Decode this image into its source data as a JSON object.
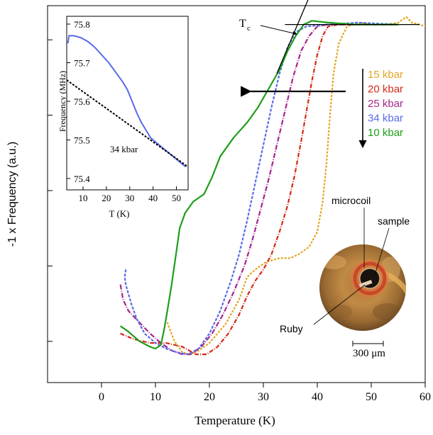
{
  "chart_data": [
    {
      "type": "line",
      "title": "",
      "xlabel": "Temperature (K)",
      "ylabel": "-1 x Frequency (a.u.)",
      "xlim": [
        -10,
        60
      ],
      "ylim": [
        0,
        10
      ],
      "x_ticks": [
        "0",
        "10",
        "20",
        "30",
        "40",
        "50",
        "60"
      ],
      "grid": false,
      "legend": "right",
      "series": [
        {
          "name": "15 kbar",
          "color": "#e2a61e",
          "dash": "3,2",
          "points": [
            [
              12.2,
              1.6
            ],
            [
              13.5,
              1.1
            ],
            [
              15,
              0.8
            ],
            [
              16.5,
              0.75
            ],
            [
              18,
              0.85
            ],
            [
              20,
              1.05
            ],
            [
              23,
              1.55
            ],
            [
              25.5,
              2.2
            ],
            [
              27,
              2.8
            ],
            [
              28.5,
              3.0
            ],
            [
              30.5,
              3.2
            ],
            [
              33,
              3.3
            ],
            [
              35,
              3.3
            ],
            [
              36.5,
              3.4
            ],
            [
              38.5,
              3.6
            ],
            [
              40,
              4.0
            ],
            [
              41,
              4.8
            ],
            [
              41.7,
              5.8
            ],
            [
              42.3,
              7.0
            ],
            [
              43,
              8.2
            ],
            [
              44,
              9.0
            ],
            [
              45.5,
              9.45
            ],
            [
              48,
              9.55
            ],
            [
              50,
              9.5
            ],
            [
              53,
              9.5
            ],
            [
              55,
              9.55
            ],
            [
              56.5,
              9.7
            ],
            [
              57.5,
              9.55
            ],
            [
              59,
              9.5
            ],
            [
              60,
              9.45
            ]
          ]
        },
        {
          "name": "20 kbar",
          "color": "#d42a17",
          "dash": "6,2,1,2",
          "points": [
            [
              3.5,
              1.3
            ],
            [
              6,
              1.15
            ],
            [
              9,
              1.05
            ],
            [
              12,
              1.05
            ],
            [
              15,
              0.95
            ],
            [
              17.5,
              0.75
            ],
            [
              19.5,
              0.75
            ],
            [
              21.5,
              0.95
            ],
            [
              23.5,
              1.3
            ],
            [
              25.5,
              1.8
            ],
            [
              27,
              2.3
            ],
            [
              28.5,
              2.7
            ],
            [
              30,
              3.0
            ],
            [
              31.5,
              3.4
            ],
            [
              33,
              4.0
            ],
            [
              34.5,
              4.7
            ],
            [
              35.8,
              5.5
            ],
            [
              37,
              6.4
            ],
            [
              38,
              7.2
            ],
            [
              39,
              8.0
            ],
            [
              40,
              8.7
            ],
            [
              41,
              9.2
            ],
            [
              42,
              9.45
            ],
            [
              44,
              9.5
            ],
            [
              48,
              9.5
            ],
            [
              55,
              9.5
            ]
          ]
        },
        {
          "name": "25 kbar",
          "color": "#a6268c",
          "dash": "7,2,1,2",
          "points": [
            [
              3.5,
              2.6
            ],
            [
              4,
              2.2
            ],
            [
              5,
              1.9
            ],
            [
              7,
              1.6
            ],
            [
              9,
              1.3
            ],
            [
              11,
              1.05
            ],
            [
              13,
              0.85
            ],
            [
              15,
              0.75
            ],
            [
              16.5,
              0.75
            ],
            [
              18.5,
              0.95
            ],
            [
              20.5,
              1.3
            ],
            [
              22.5,
              1.8
            ],
            [
              24.5,
              2.4
            ],
            [
              26.5,
              3.1
            ],
            [
              28,
              3.8
            ],
            [
              29.5,
              4.6
            ],
            [
              31,
              5.4
            ],
            [
              32.5,
              6.3
            ],
            [
              34,
              7.2
            ],
            [
              35.5,
              8.1
            ],
            [
              37,
              8.8
            ],
            [
              38.5,
              9.2
            ],
            [
              40,
              9.45
            ],
            [
              42,
              9.5
            ],
            [
              45,
              9.5
            ],
            [
              55,
              9.5
            ]
          ]
        },
        {
          "name": "34 kbar",
          "color": "#5a6be8",
          "dash": "4,2",
          "points": [
            [
              4.5,
              3.0
            ],
            [
              4.3,
              2.8
            ],
            [
              4.5,
              2.6
            ],
            [
              5.5,
              2.1
            ],
            [
              6.5,
              1.7
            ],
            [
              8,
              1.3
            ],
            [
              10,
              1.05
            ],
            [
              12,
              0.9
            ],
            [
              14,
              0.8
            ],
            [
              16,
              0.75
            ],
            [
              18,
              0.9
            ],
            [
              20,
              1.3
            ],
            [
              22,
              1.9
            ],
            [
              24,
              2.7
            ],
            [
              25.5,
              3.4
            ],
            [
              27,
              4.3
            ],
            [
              28.5,
              5.3
            ],
            [
              30,
              6.3
            ],
            [
              31.5,
              7.3
            ],
            [
              33,
              8.2
            ],
            [
              34.5,
              8.9
            ],
            [
              36,
              9.3
            ],
            [
              38,
              9.45
            ],
            [
              42,
              9.5
            ],
            [
              47.5,
              9.55
            ],
            [
              55,
              9.5
            ]
          ]
        },
        {
          "name": "10 kbar",
          "color": "#1e9e1a",
          "dash": "",
          "points": [
            [
              3.5,
              1.5
            ],
            [
              5,
              1.35
            ],
            [
              7,
              1.1
            ],
            [
              9,
              0.95
            ],
            [
              10,
              0.9
            ],
            [
              11,
              1.0
            ],
            [
              11.6,
              1.4
            ],
            [
              12.2,
              1.9
            ],
            [
              13,
              2.6
            ],
            [
              13.8,
              3.4
            ],
            [
              14.5,
              4.1
            ],
            [
              15.5,
              4.5
            ],
            [
              17,
              4.8
            ],
            [
              19,
              5.0
            ],
            [
              20.5,
              5.45
            ],
            [
              22,
              6.0
            ],
            [
              24.5,
              6.5
            ],
            [
              27,
              6.9
            ],
            [
              29,
              7.3
            ],
            [
              31,
              7.8
            ],
            [
              33,
              8.3
            ],
            [
              34.5,
              8.8
            ],
            [
              36,
              9.2
            ],
            [
              37.5,
              9.5
            ],
            [
              39,
              9.6
            ],
            [
              42,
              9.55
            ],
            [
              47,
              9.5
            ],
            [
              55,
              9.5
            ]
          ]
        }
      ],
      "annotations": {
        "tc_label": "T",
        "tc_sub": "c",
        "tc_line": [
          [
            32.5,
            8.2
          ],
          [
            39,
            10.4
          ]
        ],
        "baseline": [
          [
            34,
            9.5
          ],
          [
            59,
            9.5
          ]
        ],
        "horizontal_arrow_label_y": 8.8,
        "legend_labels": [
          "15 kbar",
          "20 kbar",
          "25 kbar",
          "34 kbar",
          "10 kbar"
        ],
        "photo_labels": {
          "microcoil": "microcoil",
          "sample": "sample",
          "ruby": "Ruby",
          "scale": "300 μm"
        }
      }
    },
    {
      "type": "line",
      "title": "",
      "xlabel": "T (K)",
      "ylabel": "Frequency (MHz)",
      "xlim": [
        3,
        55
      ],
      "ylim": [
        75.4,
        75.8
      ],
      "x_ticks": [
        "10",
        "20",
        "30",
        "40",
        "50"
      ],
      "y_ticks": [
        "75.8",
        "75.7",
        "75.6",
        "75.5",
        "75.4"
      ],
      "annotation": "34 kbar",
      "series": [
        {
          "name": "34 kbar",
          "color": "#5a6be8",
          "points": [
            [
              3.5,
              75.75
            ],
            [
              4,
              75.77
            ],
            [
              6,
              75.77
            ],
            [
              9,
              75.765
            ],
            [
              12,
              75.755
            ],
            [
              15,
              75.74
            ],
            [
              18,
              75.72
            ],
            [
              21,
              75.7
            ],
            [
              24,
              75.675
            ],
            [
              27,
              75.65
            ],
            [
              29,
              75.63
            ],
            [
              31,
              75.6
            ],
            [
              33,
              75.57
            ],
            [
              35,
              75.545
            ],
            [
              37,
              75.525
            ],
            [
              39,
              75.505
            ],
            [
              42,
              75.49
            ],
            [
              46,
              75.47
            ],
            [
              50,
              75.45
            ],
            [
              54,
              75.43
            ]
          ]
        },
        {
          "name": "linear-fit",
          "color": "#000000",
          "dash": "3,2",
          "points": [
            [
              3,
              75.655
            ],
            [
              55,
              75.43
            ]
          ]
        }
      ]
    }
  ]
}
